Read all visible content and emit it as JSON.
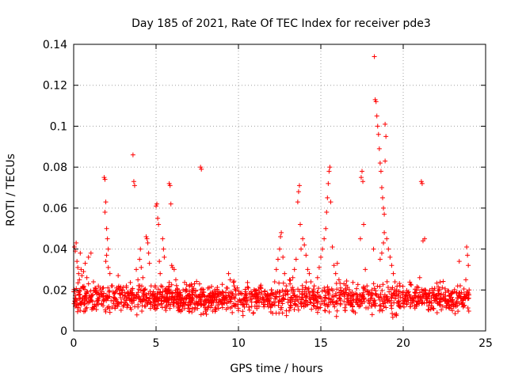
{
  "chart_data": {
    "type": "scatter",
    "title": "Day 185 of 2021, Rate Of TEC Index for receiver pde3",
    "xlabel": "GPS time / hours",
    "ylabel": "ROTI / TECUs",
    "xlim": [
      0,
      25
    ],
    "ylim": [
      0,
      0.14
    ],
    "xticks": [
      0,
      5,
      10,
      15,
      20,
      25
    ],
    "xtick_labels": [
      "0",
      "5",
      "10",
      "15",
      "20",
      "25"
    ],
    "yticks": [
      0,
      0.02,
      0.04,
      0.06,
      0.08,
      0.1,
      0.12,
      0.14
    ],
    "ytick_labels": [
      "0",
      "0.02",
      "0.04",
      "0.06",
      "0.08",
      "0.1",
      "0.12",
      "0.14"
    ],
    "grid": true,
    "marker": "+",
    "series": [
      {
        "name": "ROTI",
        "color": "#ff0000",
        "points": [
          [
            0.05,
            0.041
          ],
          [
            0.1,
            0.039
          ],
          [
            0.15,
            0.043
          ],
          [
            0.2,
            0.034
          ],
          [
            0.25,
            0.031
          ],
          [
            0.3,
            0.028
          ],
          [
            0.35,
            0.025
          ],
          [
            0.4,
            0.038
          ],
          [
            0.45,
            0.03
          ],
          [
            0.5,
            0.027
          ],
          [
            0.1,
            0.012
          ],
          [
            0.2,
            0.015
          ],
          [
            0.3,
            0.018
          ],
          [
            0.4,
            0.01
          ],
          [
            0.5,
            0.014
          ],
          [
            0.6,
            0.021
          ],
          [
            0.7,
            0.017
          ],
          [
            0.8,
            0.019
          ],
          [
            0.9,
            0.023
          ],
          [
            1.0,
            0.016
          ],
          [
            0.6,
            0.029
          ],
          [
            0.7,
            0.033
          ],
          [
            0.8,
            0.026
          ],
          [
            0.9,
            0.036
          ],
          [
            1.05,
            0.038
          ],
          [
            1.2,
            0.024
          ],
          [
            1.3,
            0.021
          ],
          [
            1.4,
            0.018
          ],
          [
            1.5,
            0.015
          ],
          [
            1.6,
            0.02
          ],
          [
            1.7,
            0.013
          ],
          [
            1.8,
            0.017
          ],
          [
            1.85,
            0.075
          ],
          [
            1.9,
            0.074
          ],
          [
            1.95,
            0.063
          ],
          [
            1.9,
            0.058
          ],
          [
            2.0,
            0.05
          ],
          [
            2.05,
            0.045
          ],
          [
            2.1,
            0.04
          ],
          [
            2.0,
            0.037
          ],
          [
            1.95,
            0.034
          ],
          [
            2.1,
            0.031
          ],
          [
            2.2,
            0.028
          ],
          [
            2.3,
            0.022
          ],
          [
            2.4,
            0.019
          ],
          [
            2.5,
            0.016
          ],
          [
            2.6,
            0.021
          ],
          [
            2.7,
            0.027
          ],
          [
            2.8,
            0.018
          ],
          [
            2.9,
            0.014
          ],
          [
            3.0,
            0.012
          ],
          [
            3.1,
            0.017
          ],
          [
            3.2,
            0.022
          ],
          [
            3.3,
            0.019
          ],
          [
            3.4,
            0.015
          ],
          [
            3.5,
            0.02
          ],
          [
            3.6,
            0.086
          ],
          [
            3.65,
            0.073
          ],
          [
            3.7,
            0.071
          ],
          [
            3.8,
            0.03
          ],
          [
            3.9,
            0.025
          ],
          [
            4.0,
            0.035
          ],
          [
            4.05,
            0.04
          ],
          [
            4.1,
            0.031
          ],
          [
            4.2,
            0.026
          ],
          [
            4.3,
            0.02
          ],
          [
            4.4,
            0.046
          ],
          [
            4.45,
            0.045
          ],
          [
            4.5,
            0.043
          ],
          [
            4.55,
            0.038
          ],
          [
            4.6,
            0.033
          ],
          [
            4.7,
            0.022
          ],
          [
            4.8,
            0.018
          ],
          [
            4.9,
            0.015
          ],
          [
            5.0,
            0.061
          ],
          [
            5.05,
            0.062
          ],
          [
            5.1,
            0.055
          ],
          [
            5.15,
            0.052
          ],
          [
            5.2,
            0.034
          ],
          [
            5.25,
            0.028
          ],
          [
            5.3,
            0.022
          ],
          [
            5.4,
            0.045
          ],
          [
            5.45,
            0.04
          ],
          [
            5.5,
            0.036
          ],
          [
            5.6,
            0.019
          ],
          [
            5.7,
            0.016
          ],
          [
            5.8,
            0.072
          ],
          [
            5.85,
            0.071
          ],
          [
            5.9,
            0.062
          ],
          [
            5.95,
            0.032
          ],
          [
            6.0,
            0.031
          ],
          [
            6.1,
            0.03
          ],
          [
            6.2,
            0.025
          ],
          [
            6.3,
            0.02
          ],
          [
            6.4,
            0.018
          ],
          [
            6.5,
            0.015
          ],
          [
            6.6,
            0.012
          ],
          [
            6.8,
            0.014
          ],
          [
            7.0,
            0.016
          ],
          [
            7.2,
            0.011
          ],
          [
            7.4,
            0.013
          ],
          [
            7.6,
            0.017
          ],
          [
            7.7,
            0.08
          ],
          [
            7.75,
            0.079
          ],
          [
            7.8,
            0.019
          ],
          [
            8.0,
            0.015
          ],
          [
            8.2,
            0.012
          ],
          [
            8.4,
            0.014
          ],
          [
            8.6,
            0.018
          ],
          [
            8.8,
            0.011
          ],
          [
            9.0,
            0.013
          ],
          [
            9.2,
            0.016
          ],
          [
            9.4,
            0.028
          ],
          [
            9.5,
            0.025
          ],
          [
            9.6,
            0.017
          ],
          [
            9.8,
            0.012
          ],
          [
            10.0,
            0.01
          ],
          [
            10.2,
            0.015
          ],
          [
            10.4,
            0.018
          ],
          [
            10.6,
            0.021
          ],
          [
            10.8,
            0.014
          ],
          [
            11.0,
            0.012
          ],
          [
            11.2,
            0.016
          ],
          [
            11.4,
            0.019
          ],
          [
            11.6,
            0.013
          ],
          [
            11.8,
            0.017
          ],
          [
            12.0,
            0.02
          ],
          [
            12.2,
            0.024
          ],
          [
            12.3,
            0.03
          ],
          [
            12.4,
            0.035
          ],
          [
            12.5,
            0.04
          ],
          [
            12.55,
            0.046
          ],
          [
            12.6,
            0.048
          ],
          [
            12.7,
            0.036
          ],
          [
            12.8,
            0.028
          ],
          [
            12.9,
            0.022
          ],
          [
            13.0,
            0.018
          ],
          [
            13.1,
            0.025
          ],
          [
            13.2,
            0.02
          ],
          [
            13.3,
            0.026
          ],
          [
            13.4,
            0.03
          ],
          [
            13.5,
            0.035
          ],
          [
            13.6,
            0.063
          ],
          [
            13.65,
            0.068
          ],
          [
            13.7,
            0.071
          ],
          [
            13.75,
            0.052
          ],
          [
            13.8,
            0.04
          ],
          [
            13.9,
            0.045
          ],
          [
            14.0,
            0.042
          ],
          [
            14.1,
            0.037
          ],
          [
            14.2,
            0.03
          ],
          [
            14.3,
            0.028
          ],
          [
            14.4,
            0.024
          ],
          [
            14.5,
            0.019
          ],
          [
            14.6,
            0.022
          ],
          [
            14.7,
            0.017
          ],
          [
            14.8,
            0.026
          ],
          [
            14.9,
            0.031
          ],
          [
            15.0,
            0.036
          ],
          [
            15.1,
            0.04
          ],
          [
            15.2,
            0.045
          ],
          [
            15.3,
            0.05
          ],
          [
            15.35,
            0.058
          ],
          [
            15.4,
            0.065
          ],
          [
            15.45,
            0.072
          ],
          [
            15.5,
            0.078
          ],
          [
            15.55,
            0.08
          ],
          [
            15.6,
            0.063
          ],
          [
            15.7,
            0.041
          ],
          [
            15.8,
            0.032
          ],
          [
            15.9,
            0.028
          ],
          [
            16.0,
            0.033
          ],
          [
            16.1,
            0.025
          ],
          [
            16.2,
            0.021
          ],
          [
            16.3,
            0.018
          ],
          [
            16.4,
            0.023
          ],
          [
            16.5,
            0.02
          ],
          [
            16.6,
            0.016
          ],
          [
            16.8,
            0.014
          ],
          [
            17.0,
            0.018
          ],
          [
            17.2,
            0.016
          ],
          [
            17.4,
            0.045
          ],
          [
            17.45,
            0.075
          ],
          [
            17.5,
            0.078
          ],
          [
            17.55,
            0.073
          ],
          [
            17.6,
            0.052
          ],
          [
            17.7,
            0.03
          ],
          [
            17.8,
            0.022
          ],
          [
            17.9,
            0.018
          ],
          [
            18.0,
            0.015
          ],
          [
            18.1,
            0.02
          ],
          [
            18.2,
            0.04
          ],
          [
            18.25,
            0.134
          ],
          [
            18.3,
            0.113
          ],
          [
            18.35,
            0.112
          ],
          [
            18.4,
            0.105
          ],
          [
            18.45,
            0.1
          ],
          [
            18.5,
            0.096
          ],
          [
            18.55,
            0.089
          ],
          [
            18.6,
            0.082
          ],
          [
            18.65,
            0.078
          ],
          [
            18.7,
            0.07
          ],
          [
            18.75,
            0.065
          ],
          [
            18.8,
            0.06
          ],
          [
            18.85,
            0.057
          ],
          [
            18.9,
            0.101
          ],
          [
            18.95,
            0.095
          ],
          [
            18.9,
            0.083
          ],
          [
            18.85,
            0.048
          ],
          [
            18.8,
            0.043
          ],
          [
            18.7,
            0.038
          ],
          [
            18.6,
            0.035
          ],
          [
            19.0,
            0.045
          ],
          [
            19.1,
            0.04
          ],
          [
            19.2,
            0.036
          ],
          [
            19.3,
            0.032
          ],
          [
            19.4,
            0.028
          ],
          [
            19.5,
            0.024
          ],
          [
            19.6,
            0.02
          ],
          [
            19.7,
            0.017
          ],
          [
            19.8,
            0.022
          ],
          [
            20.0,
            0.019
          ],
          [
            20.2,
            0.014
          ],
          [
            20.4,
            0.017
          ],
          [
            20.6,
            0.015
          ],
          [
            20.8,
            0.012
          ],
          [
            21.0,
            0.026
          ],
          [
            21.1,
            0.073
          ],
          [
            21.15,
            0.072
          ],
          [
            21.2,
            0.044
          ],
          [
            21.3,
            0.045
          ],
          [
            21.4,
            0.018
          ],
          [
            21.6,
            0.014
          ],
          [
            21.8,
            0.011
          ],
          [
            22.0,
            0.016
          ],
          [
            22.2,
            0.013
          ],
          [
            22.4,
            0.012
          ],
          [
            22.6,
            0.015
          ],
          [
            22.8,
            0.011
          ],
          [
            23.0,
            0.014
          ],
          [
            23.2,
            0.012
          ],
          [
            23.4,
            0.034
          ],
          [
            23.5,
            0.016
          ],
          [
            23.6,
            0.013
          ],
          [
            23.7,
            0.018
          ],
          [
            23.8,
            0.025
          ],
          [
            23.85,
            0.041
          ],
          [
            23.9,
            0.037
          ],
          [
            23.95,
            0.032
          ],
          [
            24.0,
            0.02
          ]
        ]
      }
    ],
    "noise_band": {
      "description": "dense background cloud of points",
      "x_start": 0,
      "x_end": 24,
      "y_min": 0.006,
      "y_max": 0.026,
      "count": 1400,
      "seed": 185
    }
  }
}
